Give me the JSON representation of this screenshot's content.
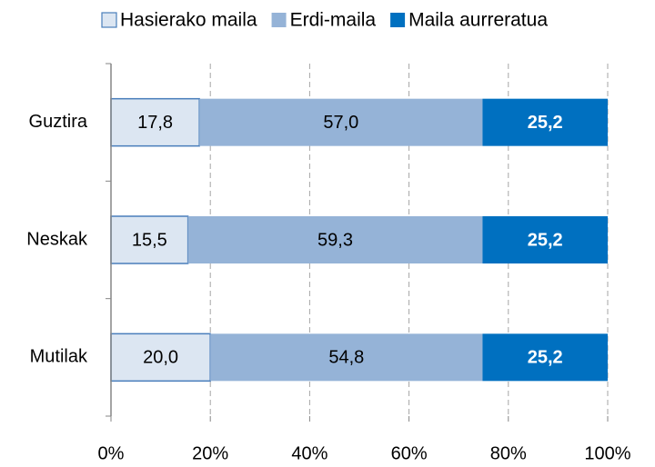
{
  "chart_data": {
    "type": "stacked-bar-horizontal",
    "categories": [
      "Guztira",
      "Neskak",
      "Mutilak"
    ],
    "series": [
      {
        "name": "Hasierako maila",
        "color": "#dce6f2",
        "edge_color": "#4a7ebb",
        "label_color": "#000000",
        "values": [
          17.8,
          15.5,
          20.0
        ],
        "value_labels": [
          "17,8",
          "15,5",
          "20,0"
        ]
      },
      {
        "name": "Erdi-maila",
        "color": "#95b3d7",
        "label_color": "#000000",
        "values": [
          57.0,
          59.3,
          54.8
        ],
        "value_labels": [
          "57,0",
          "59,3",
          "54,8"
        ]
      },
      {
        "name": "Maila aurreratua",
        "color": "#0070c0",
        "label_color": "#ffffff",
        "label_bold": true,
        "values": [
          25.2,
          25.2,
          25.2
        ],
        "value_labels": [
          "25,2",
          "25,2",
          "25,2"
        ]
      }
    ],
    "xlim": [
      0,
      100
    ],
    "xticks": [
      {
        "value": 0,
        "label": "0%"
      },
      {
        "value": 20,
        "label": "20%"
      },
      {
        "value": 40,
        "label": "40%"
      },
      {
        "value": 60,
        "label": "60%"
      },
      {
        "value": 80,
        "label": "80%"
      },
      {
        "value": 100,
        "label": "100%"
      }
    ],
    "grid": true,
    "legend": "top"
  }
}
